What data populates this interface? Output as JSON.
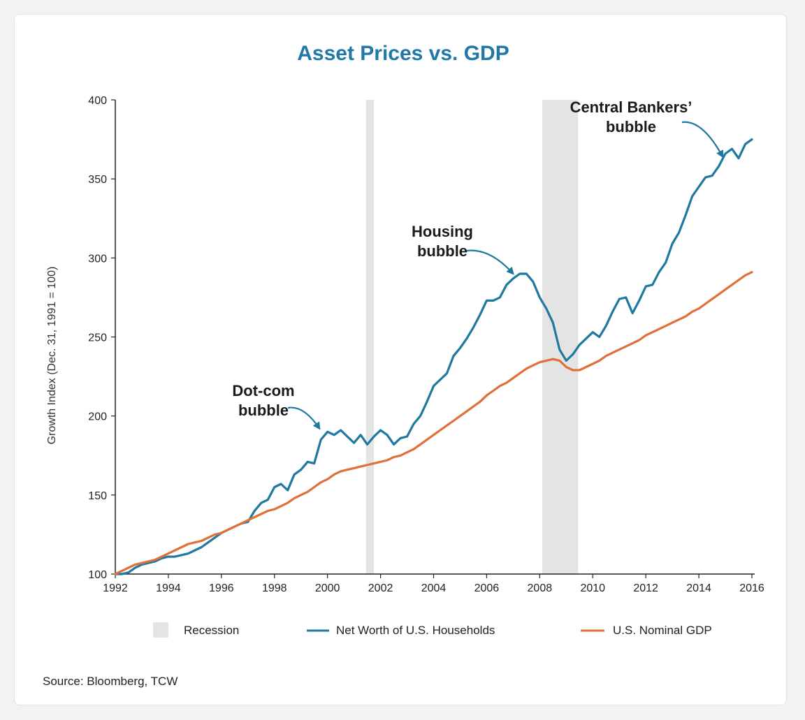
{
  "chart_data": {
    "type": "line",
    "title": "Asset Prices vs. GDP",
    "ylabel": "Growth Index (Dec. 31, 1991 = 100)",
    "xlabel": "",
    "xlim": [
      1992,
      2016
    ],
    "ylim": [
      100,
      400
    ],
    "x_ticks": [
      1992,
      1994,
      1996,
      1998,
      2000,
      2002,
      2004,
      2006,
      2008,
      2010,
      2012,
      2014,
      2016
    ],
    "y_ticks": [
      100,
      150,
      200,
      250,
      300,
      350,
      400
    ],
    "grid": false,
    "legend": {
      "placement": "bottom",
      "entries": [
        "Recession",
        "Net Worth of U.S. Households",
        "U.S. Nominal GDP"
      ]
    },
    "recessions": [
      {
        "label": "Recession",
        "start": 2001.45,
        "end": 2001.75
      },
      {
        "label": "Recession",
        "start": 2008.1,
        "end": 2009.45
      }
    ],
    "series": [
      {
        "name": "Net Worth of U.S. Households",
        "color": "#1f78a0",
        "points": [
          [
            1992.0,
            100
          ],
          [
            1992.25,
            100
          ],
          [
            1992.5,
            101
          ],
          [
            1992.75,
            104
          ],
          [
            1993.0,
            106
          ],
          [
            1993.25,
            107
          ],
          [
            1993.5,
            108
          ],
          [
            1993.75,
            110
          ],
          [
            1994.0,
            111
          ],
          [
            1994.25,
            111
          ],
          [
            1994.5,
            112
          ],
          [
            1994.75,
            113
          ],
          [
            1995.0,
            115
          ],
          [
            1995.25,
            117
          ],
          [
            1995.5,
            120
          ],
          [
            1995.75,
            123
          ],
          [
            1996.0,
            126
          ],
          [
            1996.25,
            128
          ],
          [
            1996.5,
            130
          ],
          [
            1996.75,
            132
          ],
          [
            1997.0,
            133
          ],
          [
            1997.25,
            140
          ],
          [
            1997.5,
            145
          ],
          [
            1997.75,
            147
          ],
          [
            1998.0,
            155
          ],
          [
            1998.25,
            157
          ],
          [
            1998.5,
            153
          ],
          [
            1998.75,
            163
          ],
          [
            1999.0,
            166
          ],
          [
            1999.25,
            171
          ],
          [
            1999.5,
            170
          ],
          [
            1999.75,
            185
          ],
          [
            2000.0,
            190
          ],
          [
            2000.25,
            188
          ],
          [
            2000.5,
            191
          ],
          [
            2000.75,
            187
          ],
          [
            2001.0,
            183
          ],
          [
            2001.25,
            188
          ],
          [
            2001.5,
            182
          ],
          [
            2001.75,
            187
          ],
          [
            2002.0,
            191
          ],
          [
            2002.25,
            188
          ],
          [
            2002.5,
            182
          ],
          [
            2002.75,
            186
          ],
          [
            2003.0,
            187
          ],
          [
            2003.25,
            195
          ],
          [
            2003.5,
            200
          ],
          [
            2003.75,
            209
          ],
          [
            2004.0,
            219
          ],
          [
            2004.25,
            223
          ],
          [
            2004.5,
            227
          ],
          [
            2004.75,
            238
          ],
          [
            2005.0,
            243
          ],
          [
            2005.25,
            249
          ],
          [
            2005.5,
            256
          ],
          [
            2005.75,
            264
          ],
          [
            2006.0,
            273
          ],
          [
            2006.25,
            273
          ],
          [
            2006.5,
            275
          ],
          [
            2006.75,
            283
          ],
          [
            2007.0,
            287
          ],
          [
            2007.25,
            290
          ],
          [
            2007.5,
            290
          ],
          [
            2007.75,
            285
          ],
          [
            2008.0,
            275
          ],
          [
            2008.25,
            268
          ],
          [
            2008.5,
            259
          ],
          [
            2008.75,
            242
          ],
          [
            2009.0,
            235
          ],
          [
            2009.25,
            239
          ],
          [
            2009.5,
            245
          ],
          [
            2009.75,
            249
          ],
          [
            2010.0,
            253
          ],
          [
            2010.25,
            250
          ],
          [
            2010.5,
            257
          ],
          [
            2010.75,
            266
          ],
          [
            2011.0,
            274
          ],
          [
            2011.25,
            275
          ],
          [
            2011.5,
            265
          ],
          [
            2011.75,
            273
          ],
          [
            2012.0,
            282
          ],
          [
            2012.25,
            283
          ],
          [
            2012.5,
            291
          ],
          [
            2012.75,
            297
          ],
          [
            2013.0,
            309
          ],
          [
            2013.25,
            316
          ],
          [
            2013.5,
            327
          ],
          [
            2013.75,
            339
          ],
          [
            2014.0,
            345
          ],
          [
            2014.25,
            351
          ],
          [
            2014.5,
            352
          ],
          [
            2014.75,
            358
          ],
          [
            2015.0,
            366
          ],
          [
            2015.25,
            369
          ],
          [
            2015.5,
            363
          ],
          [
            2015.75,
            372
          ],
          [
            2016.0,
            375
          ]
        ]
      },
      {
        "name": "U.S. Nominal GDP",
        "color": "#e0703a",
        "points": [
          [
            1992.0,
            100
          ],
          [
            1992.25,
            102
          ],
          [
            1992.5,
            104
          ],
          [
            1992.75,
            106
          ],
          [
            1993.0,
            107
          ],
          [
            1993.25,
            108
          ],
          [
            1993.5,
            109
          ],
          [
            1993.75,
            111
          ],
          [
            1994.0,
            113
          ],
          [
            1994.25,
            115
          ],
          [
            1994.5,
            117
          ],
          [
            1994.75,
            119
          ],
          [
            1995.0,
            120
          ],
          [
            1995.25,
            121
          ],
          [
            1995.5,
            123
          ],
          [
            1995.75,
            125
          ],
          [
            1996.0,
            126
          ],
          [
            1996.25,
            128
          ],
          [
            1996.5,
            130
          ],
          [
            1996.75,
            132
          ],
          [
            1997.0,
            134
          ],
          [
            1997.25,
            136
          ],
          [
            1997.5,
            138
          ],
          [
            1997.75,
            140
          ],
          [
            1998.0,
            141
          ],
          [
            1998.25,
            143
          ],
          [
            1998.5,
            145
          ],
          [
            1998.75,
            148
          ],
          [
            1999.0,
            150
          ],
          [
            1999.25,
            152
          ],
          [
            1999.5,
            155
          ],
          [
            1999.75,
            158
          ],
          [
            2000.0,
            160
          ],
          [
            2000.25,
            163
          ],
          [
            2000.5,
            165
          ],
          [
            2000.75,
            166
          ],
          [
            2001.0,
            167
          ],
          [
            2001.25,
            168
          ],
          [
            2001.5,
            169
          ],
          [
            2001.75,
            170
          ],
          [
            2002.0,
            171
          ],
          [
            2002.25,
            172
          ],
          [
            2002.5,
            174
          ],
          [
            2002.75,
            175
          ],
          [
            2003.0,
            177
          ],
          [
            2003.25,
            179
          ],
          [
            2003.5,
            182
          ],
          [
            2003.75,
            185
          ],
          [
            2004.0,
            188
          ],
          [
            2004.25,
            191
          ],
          [
            2004.5,
            194
          ],
          [
            2004.75,
            197
          ],
          [
            2005.0,
            200
          ],
          [
            2005.25,
            203
          ],
          [
            2005.5,
            206
          ],
          [
            2005.75,
            209
          ],
          [
            2006.0,
            213
          ],
          [
            2006.25,
            216
          ],
          [
            2006.5,
            219
          ],
          [
            2006.75,
            221
          ],
          [
            2007.0,
            224
          ],
          [
            2007.25,
            227
          ],
          [
            2007.5,
            230
          ],
          [
            2007.75,
            232
          ],
          [
            2008.0,
            234
          ],
          [
            2008.25,
            235
          ],
          [
            2008.5,
            236
          ],
          [
            2008.75,
            235
          ],
          [
            2009.0,
            231
          ],
          [
            2009.25,
            229
          ],
          [
            2009.5,
            229
          ],
          [
            2009.75,
            231
          ],
          [
            2010.0,
            233
          ],
          [
            2010.25,
            235
          ],
          [
            2010.5,
            238
          ],
          [
            2010.75,
            240
          ],
          [
            2011.0,
            242
          ],
          [
            2011.25,
            244
          ],
          [
            2011.5,
            246
          ],
          [
            2011.75,
            248
          ],
          [
            2012.0,
            251
          ],
          [
            2012.25,
            253
          ],
          [
            2012.5,
            255
          ],
          [
            2012.75,
            257
          ],
          [
            2013.0,
            259
          ],
          [
            2013.25,
            261
          ],
          [
            2013.5,
            263
          ],
          [
            2013.75,
            266
          ],
          [
            2014.0,
            268
          ],
          [
            2014.25,
            271
          ],
          [
            2014.5,
            274
          ],
          [
            2014.75,
            277
          ],
          [
            2015.0,
            280
          ],
          [
            2015.25,
            283
          ],
          [
            2015.5,
            286
          ],
          [
            2015.75,
            289
          ],
          [
            2016.0,
            291
          ]
        ]
      }
    ],
    "annotations": [
      {
        "lines": [
          "Dot-com",
          "bubble"
        ],
        "target": [
          1999.7,
          192
        ]
      },
      {
        "lines": [
          "Housing",
          "bubble"
        ],
        "target": [
          2007.0,
          290
        ]
      },
      {
        "lines": [
          "Central Bankers’",
          "bubble"
        ],
        "target": [
          2014.9,
          364
        ]
      }
    ],
    "source": "Source: Bloomberg, TCW"
  },
  "colors": {
    "title": "#1f78a8",
    "networth": "#1f78a0",
    "gdp": "#e0703a",
    "recession": "#e4e4e4",
    "arrow": "#1f78a0"
  }
}
